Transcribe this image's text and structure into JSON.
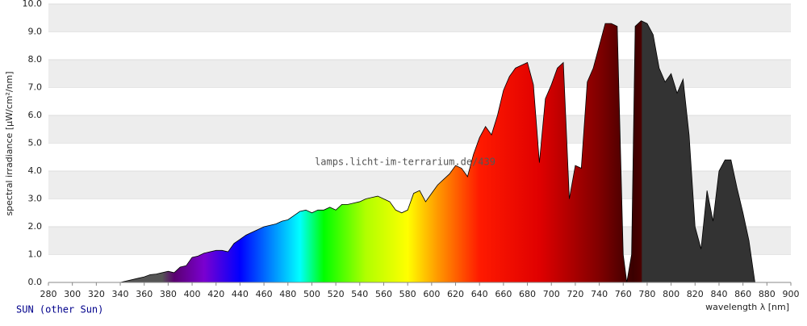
{
  "chart_data": {
    "type": "area",
    "y_label": "spectral irradiance [µW/cm²/nm]",
    "x_label": "wavelength λ [nm]",
    "watermark": "lamps.licht-im-terrarium.de/439",
    "legend": "SUN (other Sun)",
    "grid": true,
    "xlim": [
      280,
      900
    ],
    "ylim": [
      0,
      10
    ],
    "xticks": [
      280,
      300,
      320,
      340,
      360,
      380,
      400,
      420,
      440,
      460,
      480,
      500,
      520,
      540,
      560,
      580,
      600,
      620,
      640,
      660,
      680,
      700,
      720,
      740,
      760,
      780,
      800,
      820,
      840,
      860,
      880,
      900
    ],
    "yticks": [
      {
        "value": 0,
        "label": "0.0"
      },
      {
        "value": 1,
        "label": "1.0"
      },
      {
        "value": 2,
        "label": "2.0"
      },
      {
        "value": 3,
        "label": "3.0"
      },
      {
        "value": 4,
        "label": "4.0"
      },
      {
        "value": 5,
        "label": "5.0"
      },
      {
        "value": 6,
        "label": "6.0"
      },
      {
        "value": 7,
        "label": "7.0"
      },
      {
        "value": 8,
        "label": "8.0"
      },
      {
        "value": 9,
        "label": "9.0"
      },
      {
        "value": 10,
        "label": "10.0"
      }
    ],
    "x": [
      340,
      345,
      350,
      355,
      360,
      365,
      370,
      375,
      380,
      385,
      390,
      395,
      400,
      405,
      410,
      415,
      420,
      425,
      430,
      435,
      440,
      445,
      450,
      455,
      460,
      465,
      470,
      475,
      480,
      485,
      490,
      495,
      500,
      505,
      510,
      515,
      520,
      525,
      530,
      535,
      540,
      545,
      550,
      555,
      560,
      565,
      570,
      575,
      580,
      585,
      590,
      595,
      600,
      605,
      610,
      615,
      620,
      625,
      630,
      635,
      640,
      645,
      650,
      655,
      660,
      665,
      670,
      675,
      680,
      685,
      690,
      695,
      700,
      705,
      710,
      715,
      720,
      725,
      730,
      735,
      740,
      745,
      750,
      755,
      760,
      763,
      767,
      770,
      775,
      780,
      785,
      790,
      795,
      800,
      805,
      810,
      815,
      820,
      825,
      830,
      835,
      840,
      845,
      850,
      855,
      860,
      865,
      870
    ],
    "values": [
      0,
      0.05,
      0.1,
      0.15,
      0.2,
      0.28,
      0.3,
      0.35,
      0.4,
      0.35,
      0.55,
      0.6,
      0.9,
      0.95,
      1.05,
      1.1,
      1.15,
      1.15,
      1.1,
      1.4,
      1.55,
      1.7,
      1.8,
      1.9,
      2.0,
      2.05,
      2.1,
      2.2,
      2.25,
      2.4,
      2.55,
      2.6,
      2.5,
      2.6,
      2.6,
      2.7,
      2.6,
      2.8,
      2.8,
      2.85,
      2.9,
      3.0,
      3.05,
      3.1,
      3.0,
      2.9,
      2.6,
      2.5,
      2.6,
      3.2,
      3.3,
      2.9,
      3.2,
      3.5,
      3.7,
      3.9,
      4.2,
      4.1,
      3.8,
      4.6,
      5.2,
      5.6,
      5.3,
      6.0,
      6.9,
      7.4,
      7.7,
      7.8,
      7.9,
      7.1,
      4.3,
      6.6,
      7.1,
      7.7,
      7.9,
      3.0,
      4.2,
      4.1,
      7.2,
      7.7,
      8.5,
      9.3,
      9.3,
      9.2,
      1.0,
      0,
      1.0,
      9.2,
      9.4,
      9.3,
      8.9,
      7.7,
      7.2,
      7.5,
      6.8,
      7.3,
      5.3,
      2.0,
      1.2,
      3.3,
      2.2,
      4.0,
      4.4,
      4.4,
      3.4,
      2.5,
      1.5,
      0
    ]
  }
}
